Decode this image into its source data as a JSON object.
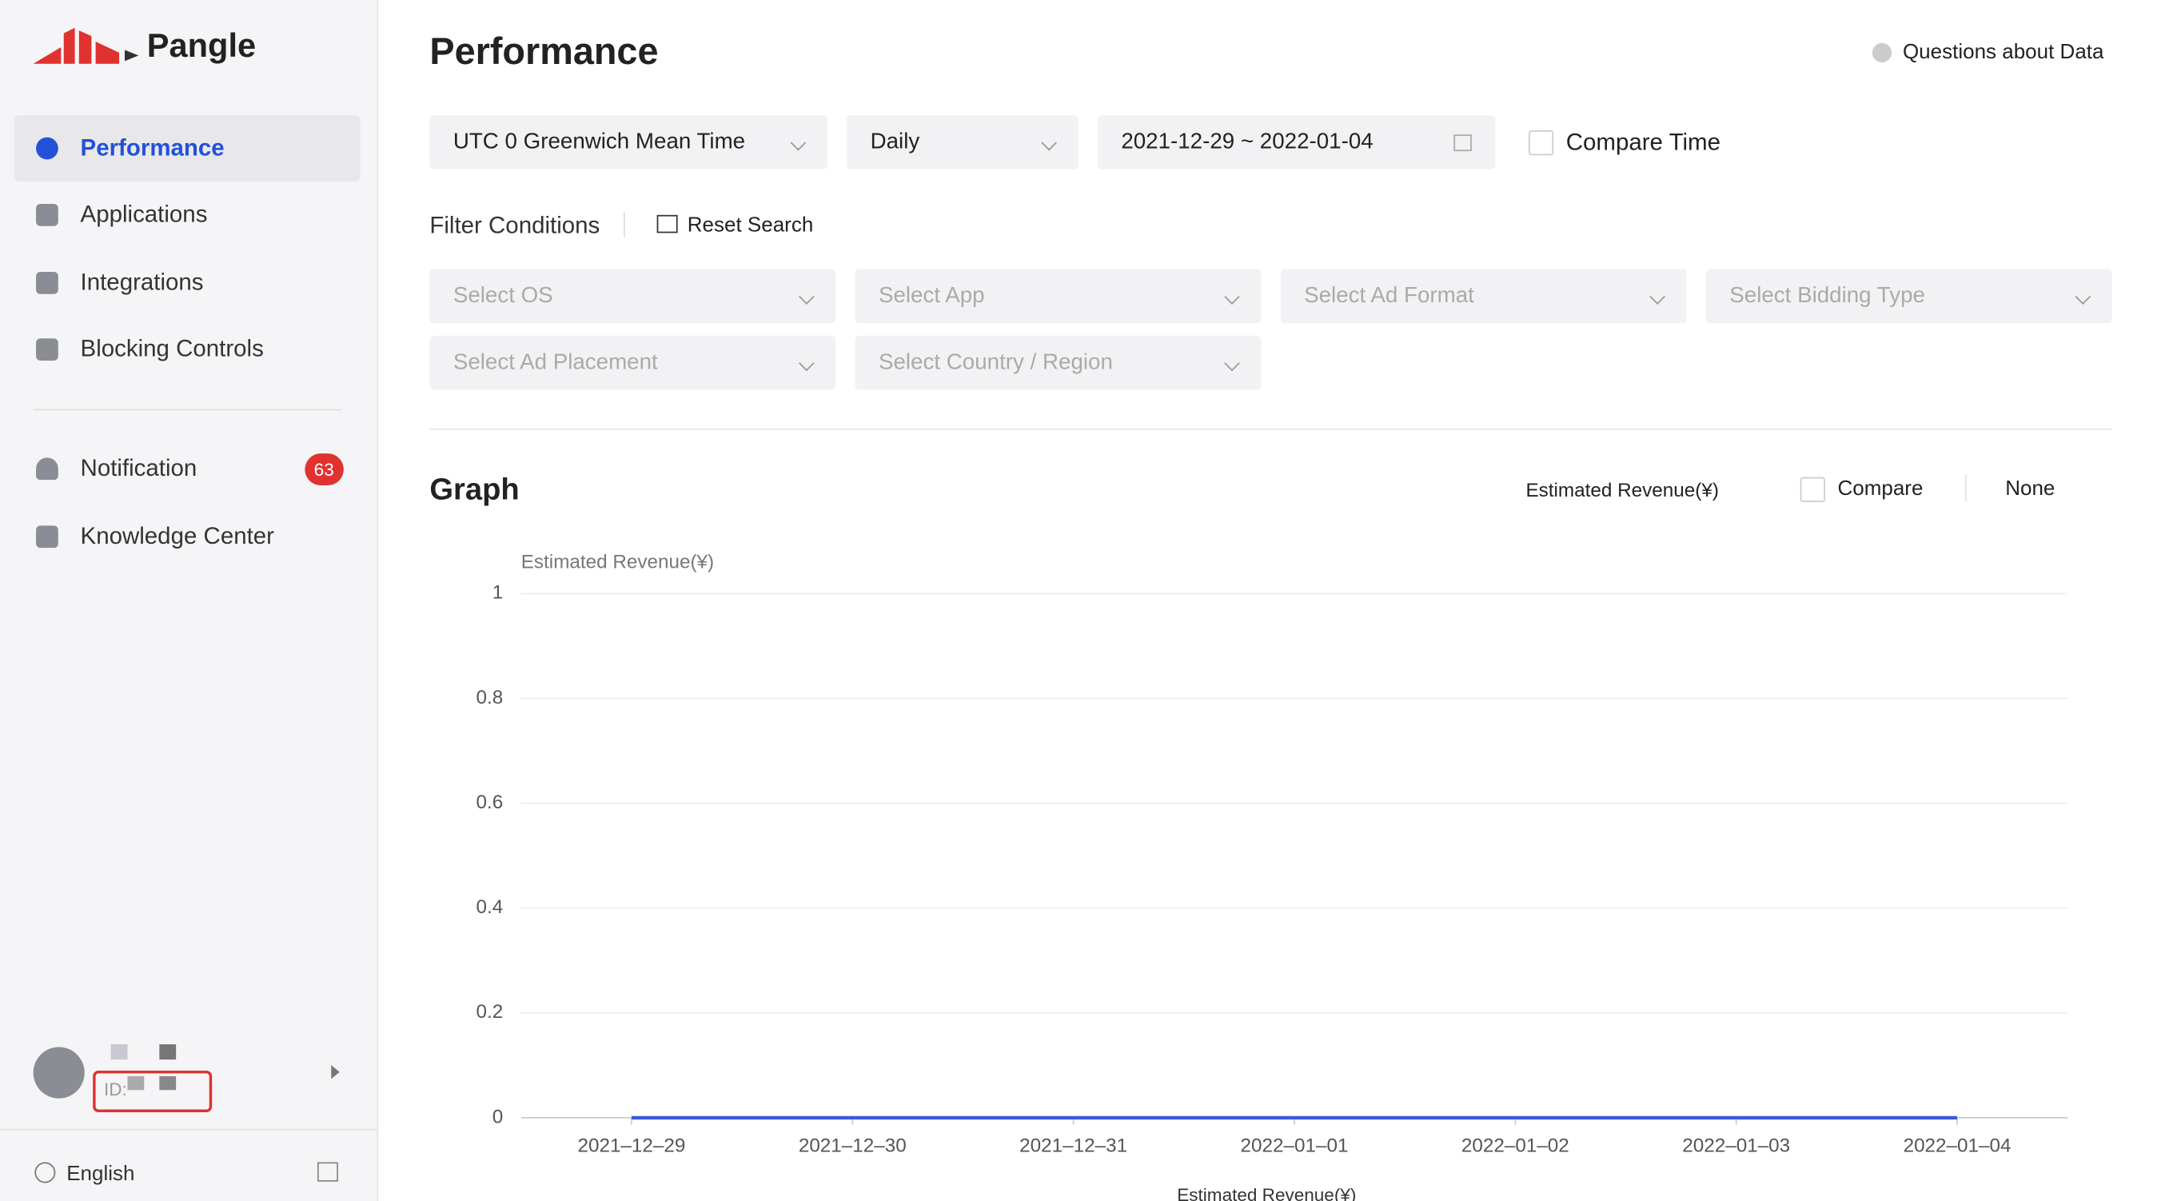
{
  "sidebar": {
    "logo": "Pangle",
    "nav": [
      "Performance",
      "Applications",
      "Integrations",
      "Blocking Controls"
    ],
    "nav2": [
      {
        "label": "Notification",
        "badge": 63
      },
      {
        "label": "Knowledge Center"
      }
    ],
    "user_id_label": "ID:",
    "language": "English"
  },
  "header": {
    "title": "Performance",
    "help": "Questions about Data"
  },
  "toolbar": {
    "timezone": "UTC 0 Greenwich Mean Time",
    "granularity": "Daily",
    "date_range": "2021-12-29 ~ 2022-01-04",
    "compare_time": "Compare Time"
  },
  "filters": {
    "title": "Filter Conditions",
    "reset": "Reset Search",
    "selects": [
      "Select OS",
      "Select App",
      "Select Ad Format",
      "Select Bidding Type",
      "Select Ad Placement",
      "Select Country / Region"
    ]
  },
  "graph": {
    "title": "Graph",
    "metric": "Estimated Revenue(¥)",
    "compare": "Compare",
    "breakdown": "None"
  },
  "chart_data": {
    "type": "line",
    "y_label": "Estimated Revenue(¥)",
    "categories": [
      "2021–12–29",
      "2021–12–30",
      "2021–12–31",
      "2022–01–01",
      "2022–01–02",
      "2022–01–03",
      "2022–01–04"
    ],
    "series": [
      {
        "name": "Estimated Revenue(¥)",
        "color": "#3b5bdb",
        "values": [
          0,
          0,
          0,
          0,
          0,
          0,
          0
        ]
      }
    ],
    "ylim": [
      0,
      1
    ],
    "yticks": [
      0,
      0.2,
      0.4,
      0.6,
      0.8,
      1
    ],
    "grid": true
  }
}
